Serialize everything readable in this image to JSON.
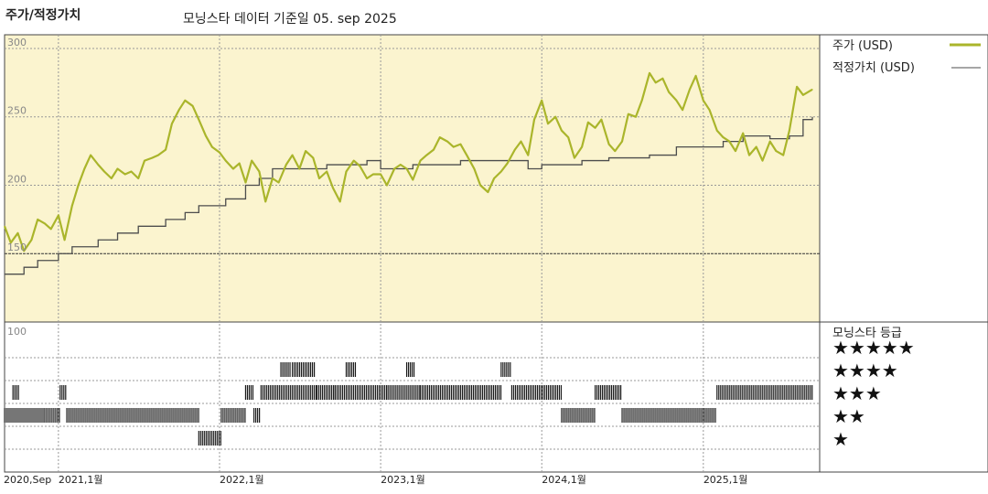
{
  "header": {
    "title": "주가/적정가치",
    "subtitle": "모닝스타 데이터 기준일 05. sep 2025"
  },
  "colors": {
    "price": "#aab52b",
    "fair": "#4d4d4d",
    "panel_bg": "#fbf4cf",
    "rating_bar": "#1a1a1a"
  },
  "chart_data": {
    "type": "line",
    "title": "주가/적정가치",
    "subtitle": "모닝스타 데이터 기준일 05. sep 2025",
    "x_range": [
      "2020-09-01",
      "2025-09-05"
    ],
    "x_ticks": [
      {
        "date": "2020-09-01",
        "label": "2020,Sep"
      },
      {
        "date": "2021-01-01",
        "label": "2021,1월"
      },
      {
        "date": "2022-01-01",
        "label": "2022,1월"
      },
      {
        "date": "2023-01-01",
        "label": "2023,1월"
      },
      {
        "date": "2024-01-01",
        "label": "2024,1월"
      },
      {
        "date": "2025-01-01",
        "label": "2025,1월"
      }
    ],
    "y_ticks": [
      150,
      200,
      250,
      300
    ],
    "ylim": [
      100,
      310
    ],
    "grid": true,
    "legend_position": "right",
    "series": [
      {
        "name": "주가 (USD)",
        "x": [
          "2020-09-01",
          "2020-09-15",
          "2020-10-01",
          "2020-10-15",
          "2020-11-01",
          "2020-11-15",
          "2020-12-01",
          "2020-12-15",
          "2021-01-01",
          "2021-01-15",
          "2021-02-01",
          "2021-02-15",
          "2021-03-01",
          "2021-03-15",
          "2021-04-01",
          "2021-04-15",
          "2021-05-01",
          "2021-05-15",
          "2021-06-01",
          "2021-06-15",
          "2021-07-01",
          "2021-07-15",
          "2021-08-01",
          "2021-08-15",
          "2021-09-01",
          "2021-09-15",
          "2021-10-01",
          "2021-10-15",
          "2021-11-01",
          "2021-11-15",
          "2021-12-01",
          "2021-12-15",
          "2022-01-01",
          "2022-01-15",
          "2022-02-01",
          "2022-02-15",
          "2022-03-01",
          "2022-03-15",
          "2022-04-01",
          "2022-04-15",
          "2022-05-01",
          "2022-05-15",
          "2022-06-01",
          "2022-06-15",
          "2022-07-01",
          "2022-07-15",
          "2022-08-01",
          "2022-08-15",
          "2022-09-01",
          "2022-09-15",
          "2022-10-01",
          "2022-10-15",
          "2022-11-01",
          "2022-11-15",
          "2022-12-01",
          "2022-12-15",
          "2023-01-01",
          "2023-01-15",
          "2023-02-01",
          "2023-02-15",
          "2023-03-01",
          "2023-03-15",
          "2023-04-01",
          "2023-04-15",
          "2023-05-01",
          "2023-05-15",
          "2023-06-01",
          "2023-06-15",
          "2023-07-01",
          "2023-07-15",
          "2023-08-01",
          "2023-08-15",
          "2023-09-01",
          "2023-09-15",
          "2023-10-01",
          "2023-10-15",
          "2023-11-01",
          "2023-11-15",
          "2023-12-01",
          "2023-12-15",
          "2024-01-01",
          "2024-01-15",
          "2024-02-01",
          "2024-02-15",
          "2024-03-01",
          "2024-03-15",
          "2024-04-01",
          "2024-04-15",
          "2024-05-01",
          "2024-05-15",
          "2024-06-01",
          "2024-06-15",
          "2024-07-01",
          "2024-07-15",
          "2024-08-01",
          "2024-08-15",
          "2024-09-01",
          "2024-09-15",
          "2024-10-01",
          "2024-10-15",
          "2024-11-01",
          "2024-11-15",
          "2024-12-01",
          "2024-12-15",
          "2025-01-01",
          "2025-01-15",
          "2025-02-01",
          "2025-02-15",
          "2025-03-01",
          "2025-03-15",
          "2025-04-01",
          "2025-04-15",
          "2025-05-01",
          "2025-05-15",
          "2025-06-01",
          "2025-06-15",
          "2025-07-01",
          "2025-07-15",
          "2025-08-01",
          "2025-08-15",
          "2025-09-05"
        ],
        "values": [
          170,
          158,
          165,
          152,
          160,
          175,
          172,
          168,
          178,
          160,
          185,
          200,
          212,
          222,
          215,
          210,
          205,
          212,
          208,
          210,
          205,
          218,
          220,
          222,
          226,
          245,
          255,
          262,
          258,
          248,
          236,
          228,
          224,
          218,
          212,
          216,
          202,
          218,
          210,
          188,
          205,
          202,
          215,
          222,
          212,
          225,
          220,
          205,
          210,
          198,
          188,
          210,
          218,
          214,
          205,
          208,
          208,
          200,
          212,
          215,
          212,
          204,
          218,
          222,
          226,
          235,
          232,
          228,
          230,
          222,
          212,
          200,
          195,
          205,
          210,
          216,
          226,
          232,
          222,
          248,
          262,
          245,
          250,
          240,
          235,
          220,
          228,
          246,
          242,
          248,
          230,
          225,
          232,
          252,
          250,
          262,
          282,
          275,
          278,
          268,
          262,
          255,
          270,
          280,
          262,
          255,
          240,
          235,
          232,
          225,
          238,
          222,
          228,
          218,
          232,
          225,
          222,
          240,
          272,
          266,
          270
        ]
      },
      {
        "name": "적정가치 (USD)",
        "x": [
          "2020-09-01",
          "2020-10-15",
          "2020-11-15",
          "2021-01-01",
          "2021-02-01",
          "2021-04-01",
          "2021-05-15",
          "2021-07-01",
          "2021-09-01",
          "2021-10-15",
          "2021-11-15",
          "2022-01-15",
          "2022-03-01",
          "2022-04-01",
          "2022-05-01",
          "2022-09-01",
          "2022-12-01",
          "2023-01-01",
          "2023-03-15",
          "2023-05-01",
          "2023-07-01",
          "2023-10-01",
          "2023-12-01",
          "2024-01-01",
          "2024-04-01",
          "2024-06-01",
          "2024-09-01",
          "2024-11-01",
          "2025-01-01",
          "2025-02-15",
          "2025-04-01",
          "2025-06-01",
          "2025-07-15",
          "2025-08-15",
          "2025-09-05"
        ],
        "values": [
          135,
          140,
          145,
          150,
          155,
          160,
          165,
          170,
          175,
          180,
          185,
          190,
          200,
          205,
          212,
          215,
          218,
          212,
          215,
          215,
          218,
          218,
          212,
          215,
          218,
          220,
          222,
          228,
          228,
          232,
          236,
          234,
          236,
          248,
          250
        ]
      }
    ],
    "rating_panel": {
      "title": "모닝스타 등급",
      "y_tick": 100,
      "levels": [
        "★★★★★",
        "★★★★",
        "★★★",
        "★★",
        "★"
      ],
      "segments": [
        {
          "start": "2020-09-01",
          "end": "2020-12-01",
          "stars": 2
        },
        {
          "start": "2020-09-20",
          "end": "2020-10-05",
          "stars": 3
        },
        {
          "start": "2020-12-01",
          "end": "2021-01-05",
          "stars": 2
        },
        {
          "start": "2021-01-05",
          "end": "2021-01-20",
          "stars": 3
        },
        {
          "start": "2021-01-20",
          "end": "2021-11-15",
          "stars": 2
        },
        {
          "start": "2021-11-15",
          "end": "2022-01-05",
          "stars": 1
        },
        {
          "start": "2022-01-05",
          "end": "2022-03-01",
          "stars": 2
        },
        {
          "start": "2022-03-01",
          "end": "2022-03-20",
          "stars": 3
        },
        {
          "start": "2022-03-20",
          "end": "2022-04-05",
          "stars": 2
        },
        {
          "start": "2022-04-05",
          "end": "2022-08-10",
          "stars": 3
        },
        {
          "start": "2022-05-20",
          "end": "2022-06-10",
          "stars": 4
        },
        {
          "start": "2022-06-15",
          "end": "2022-08-05",
          "stars": 4
        },
        {
          "start": "2022-08-10",
          "end": "2022-09-20",
          "stars": 3
        },
        {
          "start": "2022-09-20",
          "end": "2023-01-15",
          "stars": 3
        },
        {
          "start": "2022-10-15",
          "end": "2022-11-05",
          "stars": 4
        },
        {
          "start": "2023-01-15",
          "end": "2023-04-01",
          "stars": 3
        },
        {
          "start": "2023-03-01",
          "end": "2023-03-20",
          "stars": 4
        },
        {
          "start": "2023-04-01",
          "end": "2023-10-01",
          "stars": 3
        },
        {
          "start": "2023-10-01",
          "end": "2023-10-25",
          "stars": 4
        },
        {
          "start": "2023-10-25",
          "end": "2024-02-15",
          "stars": 3
        },
        {
          "start": "2024-02-15",
          "end": "2024-05-01",
          "stars": 2
        },
        {
          "start": "2024-05-01",
          "end": "2024-07-01",
          "stars": 3
        },
        {
          "start": "2024-07-01",
          "end": "2025-02-01",
          "stars": 2
        },
        {
          "start": "2025-02-01",
          "end": "2025-09-05",
          "stars": 3
        }
      ]
    }
  },
  "legend": {
    "price_label": "주가 (USD)",
    "fair_label": "적정가치 (USD)"
  }
}
